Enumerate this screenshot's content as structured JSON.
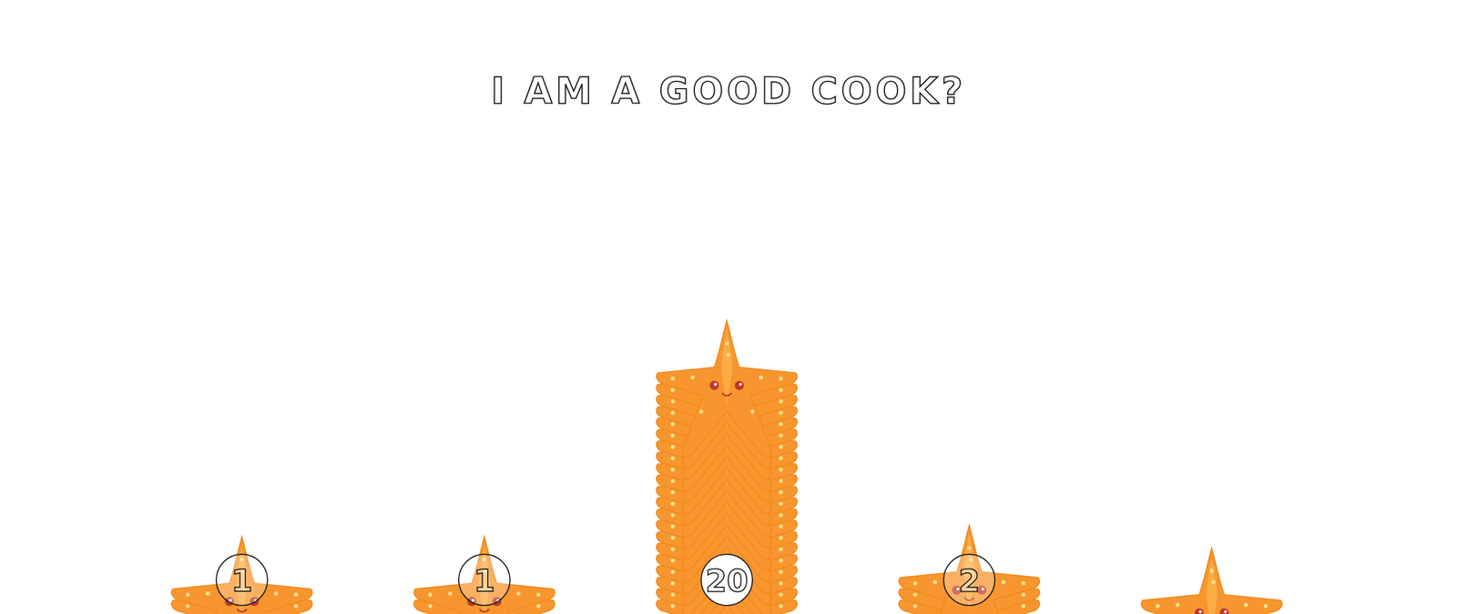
{
  "chart_data": {
    "type": "pictorial_bar",
    "title": "I AM A GOOD COOK?",
    "categories": [
      null,
      null,
      null,
      null,
      null
    ],
    "values": [
      1,
      1,
      20,
      2,
      0
    ],
    "ylim": [
      0,
      48
    ],
    "color": "#f7962f",
    "data_labels": true,
    "tick_labels": false,
    "grid": false
  }
}
